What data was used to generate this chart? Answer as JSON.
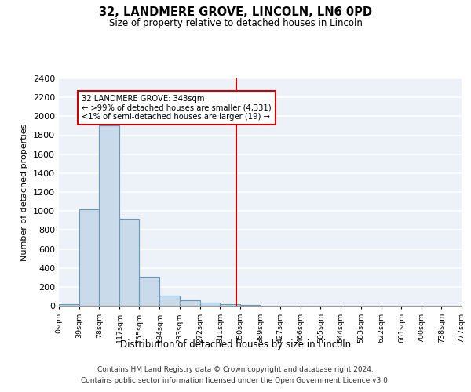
{
  "title_line1": "32, LANDMERE GROVE, LINCOLN, LN6 0PD",
  "title_line2": "Size of property relative to detached houses in Lincoln",
  "xlabel": "Distribution of detached houses by size in Lincoln",
  "ylabel": "Number of detached properties",
  "bar_color": "#c9daea",
  "bar_edge_color": "#6699bb",
  "background_color": "#edf2f8",
  "vline_x": 343,
  "vline_color": "#cc0000",
  "annotation_line1": "32 LANDMERE GROVE: 343sqm",
  "annotation_line2": "← >99% of detached houses are smaller (4,331)",
  "annotation_line3": "<1% of semi-detached houses are larger (19) →",
  "footnote_line1": "Contains HM Land Registry data © Crown copyright and database right 2024.",
  "footnote_line2": "Contains public sector information licensed under the Open Government Licence v3.0.",
  "bin_edges": [
    0,
    39,
    78,
    117,
    155,
    194,
    233,
    272,
    311,
    350,
    389,
    427,
    466,
    505,
    544,
    583,
    622,
    661,
    700,
    738,
    777
  ],
  "bin_labels": [
    "0sqm",
    "39sqm",
    "78sqm",
    "117sqm",
    "155sqm",
    "194sqm",
    "233sqm",
    "272sqm",
    "311sqm",
    "350sqm",
    "389sqm",
    "427sqm",
    "466sqm",
    "505sqm",
    "544sqm",
    "583sqm",
    "622sqm",
    "661sqm",
    "700sqm",
    "738sqm",
    "777sqm"
  ],
  "bar_heights": [
    20,
    1020,
    1900,
    920,
    310,
    110,
    55,
    35,
    20,
    5,
    2,
    1,
    1,
    0,
    0,
    0,
    0,
    0,
    0,
    0
  ],
  "ylim": [
    0,
    2400
  ],
  "yticks": [
    0,
    200,
    400,
    600,
    800,
    1000,
    1200,
    1400,
    1600,
    1800,
    2000,
    2200,
    2400
  ]
}
